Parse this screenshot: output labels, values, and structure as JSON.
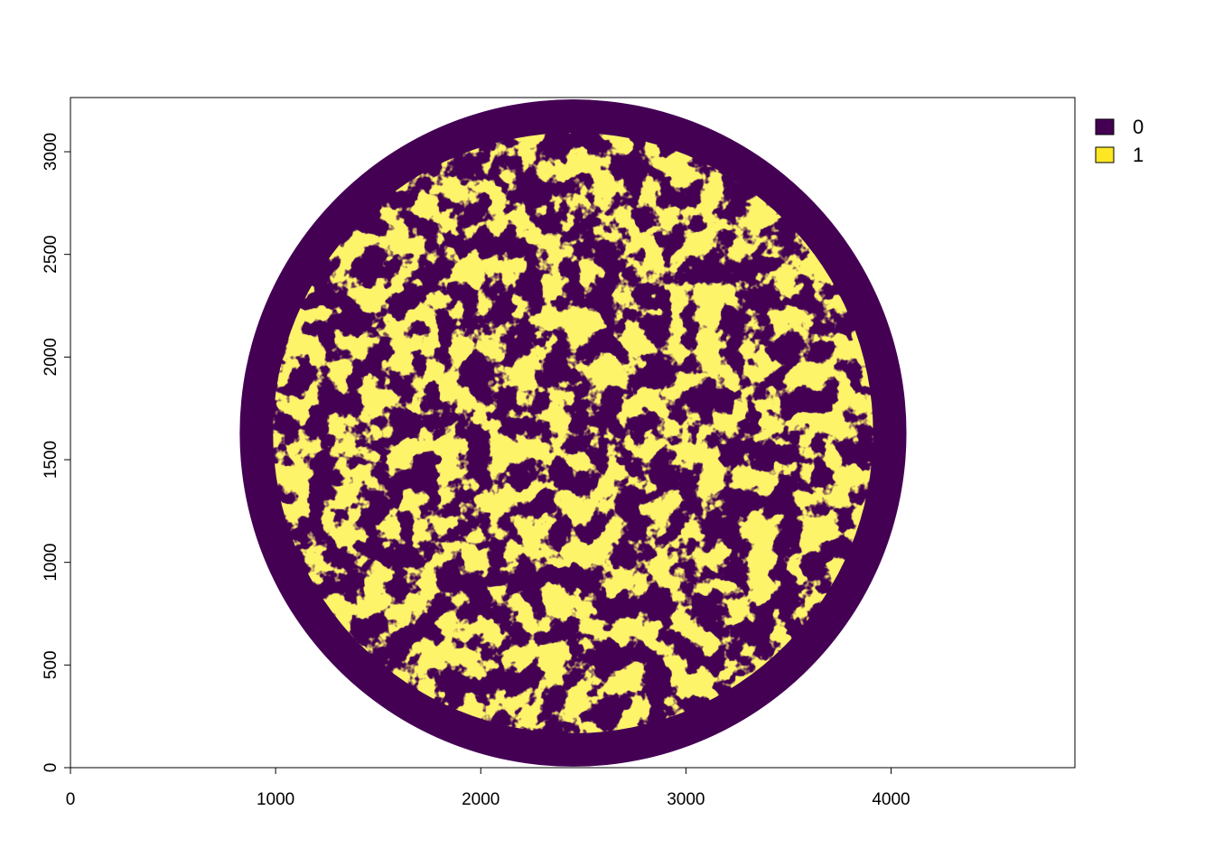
{
  "chart_data": {
    "type": "heatmap",
    "title": "",
    "xlabel": "",
    "ylabel": "",
    "xlim": [
      0,
      4896
    ],
    "ylim": [
      0,
      3264
    ],
    "x_ticks": [
      0,
      1000,
      2000,
      3000,
      4000
    ],
    "y_ticks": [
      0,
      500,
      1000,
      1500,
      2000,
      2500,
      3000
    ],
    "x_tick_labels": [
      "0",
      "1000",
      "2000",
      "3000",
      "4000"
    ],
    "y_tick_labels": [
      "0",
      "500",
      "1000",
      "1500",
      "2000",
      "2500",
      "3000"
    ],
    "classes": [
      {
        "label": "0",
        "color": "#440154"
      },
      {
        "label": "1",
        "color": "#FDE725"
      }
    ],
    "mask_circle": {
      "center_x": 2450,
      "center_y": 1630,
      "radius": 1625
    },
    "legend_position": "top-right",
    "grid": false
  }
}
